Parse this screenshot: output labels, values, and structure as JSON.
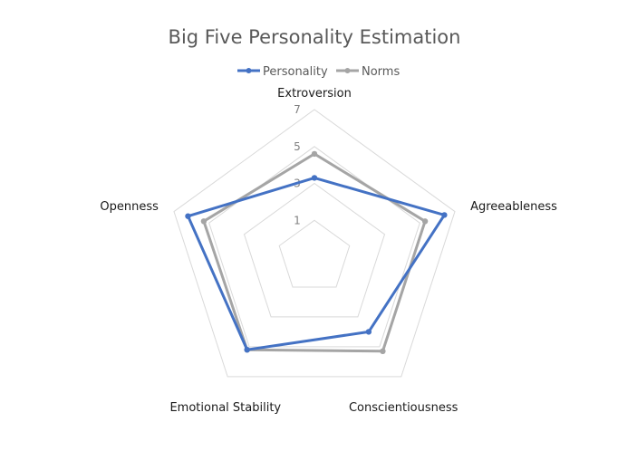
{
  "chart_data": {
    "type": "radar",
    "title": "Big Five Personality Estimation",
    "categories": [
      "Extroversion",
      "Agreeableness",
      "Conscientiousness",
      "Emotional Stability",
      "Openness"
    ],
    "series": [
      {
        "name": "Personality",
        "values": [
          3.3,
          6.4,
          4.0,
          5.2,
          6.2
        ],
        "color": "#4472c4"
      },
      {
        "name": "Norms",
        "values": [
          4.6,
          5.3,
          5.3,
          5.2,
          5.3
        ],
        "color": "#a5a5a5"
      }
    ],
    "rlim": [
      -1,
      7
    ],
    "ticks": [
      1,
      3,
      5,
      7
    ],
    "grid": true,
    "legend_position": "top"
  }
}
